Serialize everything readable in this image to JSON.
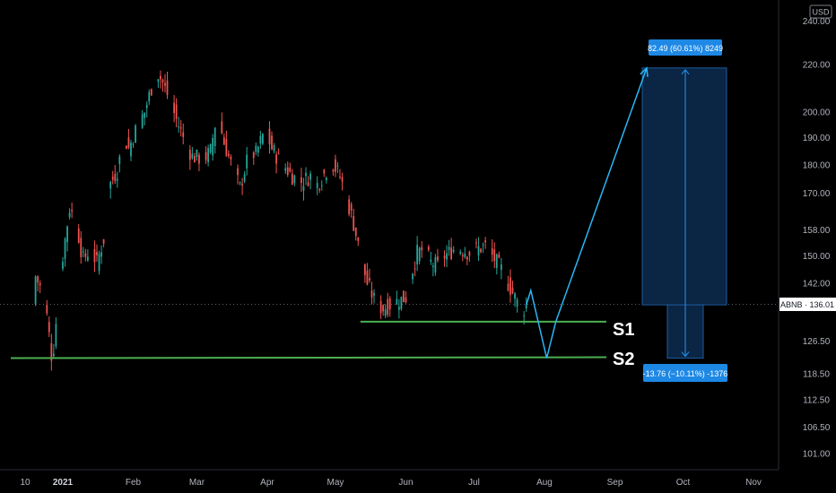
{
  "currency_badge": "USD",
  "price_tag": {
    "symbol": "ABNB",
    "value": "136.01",
    "text": "ABNB · 136.01"
  },
  "y_axis_labels": [
    "240.00",
    "220.00",
    "200.00",
    "190.00",
    "180.00",
    "170.00",
    "158.00",
    "150.00",
    "142.00",
    "126.50",
    "118.50",
    "112.50",
    "106.50",
    "101.00"
  ],
  "x_axis_labels": [
    "10",
    "2021",
    "Feb",
    "Mar",
    "Apr",
    "May",
    "Jun",
    "Jul",
    "Aug",
    "Sep",
    "Oct",
    "Nov"
  ],
  "support_labels": {
    "s1": "S1",
    "s2": "S2"
  },
  "long_position": {
    "target_text": "82.49 (60.61%) 8249",
    "stop_text": "-13.76 (−10.11%) -1376",
    "entry": 136.01,
    "target": 218.5,
    "stop": 122.25
  },
  "levels": {
    "s1": 131.5,
    "s2": 122.25
  },
  "colors": {
    "up": "#26a69a",
    "down": "#ef5350",
    "support": "#4caf50",
    "projection": "#29b6f6",
    "box_fill": "#0b2544",
    "box_border": "#1e5a9c",
    "label_bg": "#1e88e5"
  },
  "chart_data": {
    "type": "candlestick",
    "symbol": "ABNB",
    "last_price": 136.01,
    "scale": "log",
    "ylim": [
      97,
      250
    ],
    "x_ticks": [
      "10",
      "2021",
      "Feb",
      "Mar",
      "Apr",
      "May",
      "Jun",
      "Jul",
      "Aug",
      "Sep",
      "Oct",
      "Nov"
    ],
    "y_ticks": [
      240,
      220,
      200,
      190,
      180,
      170,
      158,
      150,
      142,
      126.5,
      118.5,
      112.5,
      106.5,
      101
    ],
    "price_path": [
      [
        "Dec 10",
        144
      ],
      [
        "Dec 14",
        138
      ],
      [
        "Dec 17",
        123
      ],
      [
        "Dec 18",
        125
      ],
      [
        "Dec 22",
        150
      ],
      [
        "Dec 25",
        165
      ],
      [
        "Dec 28",
        160
      ],
      [
        "Dec 30",
        152
      ],
      [
        "Jan 2",
        146
      ],
      [
        "Jan 6",
        140
      ],
      [
        "Jan 8",
        148
      ],
      [
        "Jan 12",
        152
      ],
      [
        "Jan 15",
        148
      ],
      [
        "Jan 18",
        155
      ],
      [
        "Jan 20",
        172
      ],
      [
        "Jan 24",
        178
      ],
      [
        "Jan 27",
        190
      ],
      [
        "Jan 29",
        186
      ],
      [
        "Feb 2",
        195
      ],
      [
        "Feb 5",
        200
      ],
      [
        "Feb 8",
        210
      ],
      [
        "Feb 11",
        216
      ],
      [
        "Feb 13",
        212
      ],
      [
        "Feb 16",
        205
      ],
      [
        "Feb 19",
        197
      ],
      [
        "Feb 23",
        188
      ],
      [
        "Feb 26",
        183
      ],
      [
        "Mar 3",
        182
      ],
      [
        "Mar 6",
        185
      ],
      [
        "Mar 9",
        200
      ],
      [
        "Mar 12",
        188
      ],
      [
        "Mar 16",
        178
      ],
      [
        "Mar 19",
        172
      ],
      [
        "Mar 23",
        184
      ],
      [
        "Mar 26",
        184
      ],
      [
        "Mar 30",
        193
      ],
      [
        "Apr 2",
        186
      ],
      [
        "Apr 5",
        182
      ],
      [
        "Apr 8",
        179
      ],
      [
        "Apr 11",
        176
      ],
      [
        "Apr 15",
        174
      ],
      [
        "Apr 19",
        176
      ],
      [
        "Apr 22",
        173
      ],
      [
        "Apr 26",
        178
      ],
      [
        "Apr 29",
        180
      ],
      [
        "May 2",
        176
      ],
      [
        "May 5",
        168
      ],
      [
        "May 8",
        160
      ],
      [
        "May 11",
        150
      ],
      [
        "May 14",
        142
      ],
      [
        "May 18",
        136
      ],
      [
        "May 21",
        135
      ],
      [
        "May 24",
        136
      ],
      [
        "May 27",
        137
      ],
      [
        "May 31",
        138
      ],
      [
        "Jun 3",
        146
      ],
      [
        "Jun 5",
        151
      ],
      [
        "Jun 8",
        152
      ],
      [
        "Jun 11",
        148
      ],
      [
        "Jun 14",
        147
      ],
      [
        "Jun 17",
        150
      ],
      [
        "Jun 21",
        152
      ],
      [
        "Jun 24",
        152
      ],
      [
        "Jun 28",
        151
      ],
      [
        "Jul 1",
        152
      ],
      [
        "Jul 5",
        153
      ],
      [
        "Jul 8",
        150
      ],
      [
        "Jul 12",
        146
      ],
      [
        "Jul 15",
        142
      ],
      [
        "Jul 18",
        138
      ],
      [
        "Jul 21",
        134
      ],
      [
        "Jul 23",
        136
      ]
    ],
    "support_levels": [
      {
        "name": "S1",
        "value": 131.5
      },
      {
        "name": "S2",
        "value": 122.25
      }
    ],
    "projection": [
      [
        "Jul 23",
        136.0
      ],
      [
        "Jul 25",
        140.0
      ],
      [
        "Aug 1",
        122.25
      ],
      [
        "Aug 5",
        131.5
      ],
      [
        "Sep 14",
        218.5
      ]
    ],
    "long_position": {
      "entry": 136.01,
      "target": 218.5,
      "stop": 122.25,
      "target_text": "82.49 (60.61%) 8249",
      "stop_text": "-13.76 (−10.11%) -1376"
    }
  }
}
